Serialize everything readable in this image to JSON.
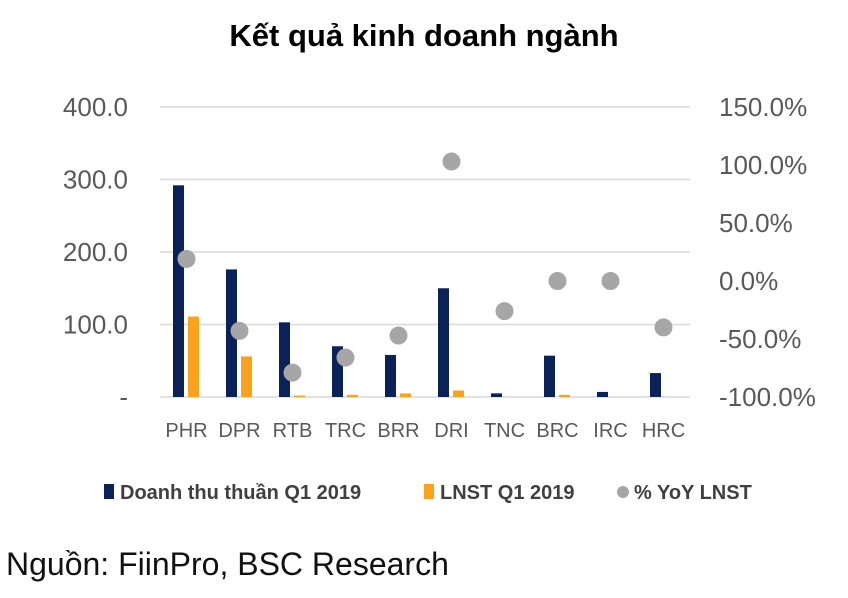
{
  "title": "Kết quả kinh doanh ngành",
  "source": "Nguồn: FiinPro, BSC Research",
  "colors": {
    "revenue": "#0b2258",
    "profit": "#fba21d",
    "yoy": "#a6a6a6",
    "grid": "#d9d9d9",
    "axis_text": "#595959"
  },
  "chart_data": {
    "type": "bar",
    "categories": [
      "PHR",
      "DPR",
      "RTB",
      "TRC",
      "BRR",
      "DRI",
      "TNC",
      "BRC",
      "IRC",
      "HRC"
    ],
    "series": [
      {
        "name": "Doanh thu thuần Q1 2019",
        "type": "bar",
        "axis": "left",
        "values": [
          292,
          176,
          103,
          70,
          58,
          150,
          5,
          57,
          7,
          33
        ]
      },
      {
        "name": "LNST Q1 2019",
        "type": "bar",
        "axis": "left",
        "values": [
          111,
          56,
          2,
          3,
          5,
          9,
          0,
          3,
          0,
          0
        ]
      },
      {
        "name": "% YoY LNST",
        "type": "scatter",
        "axis": "right",
        "values": [
          19,
          -43,
          -79,
          -66,
          -47,
          103,
          -26,
          0,
          0,
          -40
        ]
      }
    ],
    "y_left": {
      "ylim": [
        0,
        400
      ],
      "ticks": [
        "-",
        "100.0",
        "200.0",
        "300.0",
        "400.0"
      ]
    },
    "y_right": {
      "ylim": [
        -100,
        150
      ],
      "ticks": [
        "-100.0%",
        "-50.0%",
        "0.0%",
        "50.0%",
        "100.0%",
        "150.0%"
      ]
    },
    "grid": true,
    "legend_position": "bottom",
    "xlabel": "",
    "ylabel": ""
  }
}
